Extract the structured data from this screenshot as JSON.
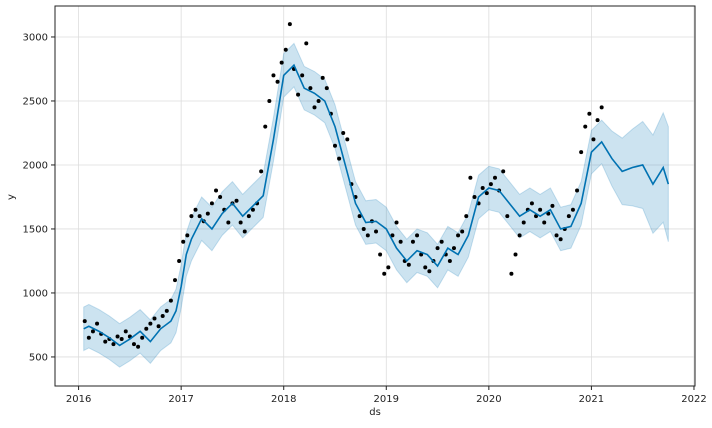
{
  "chart_data": {
    "type": "line",
    "title": "",
    "xlabel": "ds",
    "ylabel": "y",
    "xlim": [
      2015.77,
      2022.01
    ],
    "ylim": [
      273,
      3242
    ],
    "grid": true,
    "x_ticks": [
      "2016",
      "2017",
      "2018",
      "2019",
      "2020",
      "2021",
      "2022"
    ],
    "y_ticks": [
      "500",
      "1000",
      "1500",
      "2000",
      "2500",
      "3000"
    ],
    "colors": {
      "forecast": "#0072B2",
      "interval": "#0072B2",
      "observed": "#000000",
      "grid": "#dddddd"
    },
    "forecast": [
      [
        2016.05,
        720
      ],
      [
        2016.1,
        740
      ],
      [
        2016.2,
        700
      ],
      [
        2016.3,
        650
      ],
      [
        2016.4,
        590
      ],
      [
        2016.5,
        640
      ],
      [
        2016.6,
        700
      ],
      [
        2016.7,
        620
      ],
      [
        2016.8,
        720
      ],
      [
        2016.9,
        780
      ],
      [
        2016.95,
        860
      ],
      [
        2017.0,
        1050
      ],
      [
        2017.05,
        1300
      ],
      [
        2017.1,
        1420
      ],
      [
        2017.2,
        1580
      ],
      [
        2017.3,
        1500
      ],
      [
        2017.4,
        1620
      ],
      [
        2017.5,
        1700
      ],
      [
        2017.6,
        1600
      ],
      [
        2017.7,
        1680
      ],
      [
        2017.8,
        1760
      ],
      [
        2017.9,
        2200
      ],
      [
        2018.0,
        2700
      ],
      [
        2018.1,
        2780
      ],
      [
        2018.2,
        2600
      ],
      [
        2018.3,
        2560
      ],
      [
        2018.4,
        2500
      ],
      [
        2018.5,
        2300
      ],
      [
        2018.6,
        2000
      ],
      [
        2018.7,
        1700
      ],
      [
        2018.8,
        1550
      ],
      [
        2018.9,
        1560
      ],
      [
        2019.0,
        1500
      ],
      [
        2019.1,
        1350
      ],
      [
        2019.2,
        1250
      ],
      [
        2019.3,
        1330
      ],
      [
        2019.4,
        1300
      ],
      [
        2019.5,
        1210
      ],
      [
        2019.6,
        1350
      ],
      [
        2019.7,
        1300
      ],
      [
        2019.8,
        1450
      ],
      [
        2019.9,
        1750
      ],
      [
        2020.0,
        1820
      ],
      [
        2020.1,
        1800
      ],
      [
        2020.2,
        1700
      ],
      [
        2020.3,
        1600
      ],
      [
        2020.4,
        1650
      ],
      [
        2020.5,
        1600
      ],
      [
        2020.6,
        1650
      ],
      [
        2020.7,
        1500
      ],
      [
        2020.8,
        1520
      ],
      [
        2020.9,
        1700
      ],
      [
        2021.0,
        2100
      ],
      [
        2021.1,
        2180
      ],
      [
        2021.2,
        2050
      ],
      [
        2021.3,
        1950
      ],
      [
        2021.4,
        1980
      ],
      [
        2021.5,
        2000
      ],
      [
        2021.6,
        1850
      ],
      [
        2021.7,
        1980
      ],
      [
        2021.75,
        1850
      ]
    ],
    "interval_halfwidth": [
      [
        2016.05,
        170
      ],
      [
        2021.1,
        170
      ],
      [
        2021.3,
        260
      ],
      [
        2021.5,
        340
      ],
      [
        2021.75,
        450
      ]
    ],
    "observed": [
      [
        2016.06,
        780
      ],
      [
        2016.1,
        650
      ],
      [
        2016.14,
        700
      ],
      [
        2016.18,
        760
      ],
      [
        2016.22,
        680
      ],
      [
        2016.26,
        620
      ],
      [
        2016.3,
        640
      ],
      [
        2016.34,
        600
      ],
      [
        2016.38,
        660
      ],
      [
        2016.42,
        640
      ],
      [
        2016.46,
        700
      ],
      [
        2016.5,
        660
      ],
      [
        2016.54,
        600
      ],
      [
        2016.58,
        580
      ],
      [
        2016.62,
        650
      ],
      [
        2016.66,
        720
      ],
      [
        2016.7,
        760
      ],
      [
        2016.74,
        800
      ],
      [
        2016.78,
        740
      ],
      [
        2016.82,
        820
      ],
      [
        2016.86,
        860
      ],
      [
        2016.9,
        940
      ],
      [
        2016.94,
        1100
      ],
      [
        2016.98,
        1250
      ],
      [
        2017.02,
        1400
      ],
      [
        2017.06,
        1450
      ],
      [
        2017.1,
        1600
      ],
      [
        2017.14,
        1650
      ],
      [
        2017.18,
        1600
      ],
      [
        2017.22,
        1560
      ],
      [
        2017.26,
        1620
      ],
      [
        2017.3,
        1700
      ],
      [
        2017.34,
        1800
      ],
      [
        2017.38,
        1750
      ],
      [
        2017.42,
        1650
      ],
      [
        2017.46,
        1550
      ],
      [
        2017.5,
        1700
      ],
      [
        2017.54,
        1720
      ],
      [
        2017.58,
        1550
      ],
      [
        2017.62,
        1480
      ],
      [
        2017.66,
        1600
      ],
      [
        2017.7,
        1650
      ],
      [
        2017.74,
        1700
      ],
      [
        2017.78,
        1950
      ],
      [
        2017.82,
        2300
      ],
      [
        2017.86,
        2500
      ],
      [
        2017.9,
        2700
      ],
      [
        2017.94,
        2650
      ],
      [
        2017.98,
        2800
      ],
      [
        2018.02,
        2900
      ],
      [
        2018.06,
        3100
      ],
      [
        2018.1,
        2750
      ],
      [
        2018.14,
        2550
      ],
      [
        2018.18,
        2700
      ],
      [
        2018.22,
        2950
      ],
      [
        2018.26,
        2600
      ],
      [
        2018.3,
        2450
      ],
      [
        2018.34,
        2500
      ],
      [
        2018.38,
        2680
      ],
      [
        2018.42,
        2600
      ],
      [
        2018.46,
        2400
      ],
      [
        2018.5,
        2150
      ],
      [
        2018.54,
        2050
      ],
      [
        2018.58,
        2250
      ],
      [
        2018.62,
        2200
      ],
      [
        2018.66,
        1850
      ],
      [
        2018.7,
        1750
      ],
      [
        2018.74,
        1600
      ],
      [
        2018.78,
        1500
      ],
      [
        2018.82,
        1450
      ],
      [
        2018.86,
        1560
      ],
      [
        2018.9,
        1480
      ],
      [
        2018.94,
        1300
      ],
      [
        2018.98,
        1150
      ],
      [
        2019.02,
        1200
      ],
      [
        2019.06,
        1450
      ],
      [
        2019.1,
        1550
      ],
      [
        2019.14,
        1400
      ],
      [
        2019.18,
        1250
      ],
      [
        2019.22,
        1220
      ],
      [
        2019.26,
        1400
      ],
      [
        2019.3,
        1450
      ],
      [
        2019.34,
        1300
      ],
      [
        2019.38,
        1200
      ],
      [
        2019.42,
        1170
      ],
      [
        2019.46,
        1250
      ],
      [
        2019.5,
        1350
      ],
      [
        2019.54,
        1400
      ],
      [
        2019.58,
        1300
      ],
      [
        2019.62,
        1250
      ],
      [
        2019.66,
        1350
      ],
      [
        2019.7,
        1450
      ],
      [
        2019.74,
        1480
      ],
      [
        2019.78,
        1600
      ],
      [
        2019.82,
        1900
      ],
      [
        2019.86,
        1750
      ],
      [
        2019.9,
        1700
      ],
      [
        2019.94,
        1820
      ],
      [
        2019.98,
        1780
      ],
      [
        2020.02,
        1850
      ],
      [
        2020.06,
        1900
      ],
      [
        2020.1,
        1800
      ],
      [
        2020.14,
        1950
      ],
      [
        2020.18,
        1600
      ],
      [
        2020.22,
        1150
      ],
      [
        2020.26,
        1300
      ],
      [
        2020.3,
        1450
      ],
      [
        2020.34,
        1550
      ],
      [
        2020.38,
        1650
      ],
      [
        2020.42,
        1700
      ],
      [
        2020.46,
        1600
      ],
      [
        2020.5,
        1650
      ],
      [
        2020.54,
        1550
      ],
      [
        2020.58,
        1620
      ],
      [
        2020.62,
        1680
      ],
      [
        2020.66,
        1450
      ],
      [
        2020.7,
        1420
      ],
      [
        2020.74,
        1500
      ],
      [
        2020.78,
        1600
      ],
      [
        2020.82,
        1650
      ],
      [
        2020.86,
        1800
      ],
      [
        2020.9,
        2100
      ],
      [
        2020.94,
        2300
      ],
      [
        2020.98,
        2400
      ],
      [
        2021.02,
        2200
      ],
      [
        2021.06,
        2350
      ],
      [
        2021.1,
        2450
      ]
    ]
  }
}
